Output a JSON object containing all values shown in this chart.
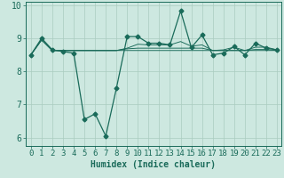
{
  "xlabel": "Humidex (Indice chaleur)",
  "background_color": "#cde8e0",
  "grid_color": "#aaccbf",
  "line_color": "#1a6b5a",
  "xlim_min": -0.5,
  "xlim_max": 23.4,
  "ylim_min": 5.75,
  "ylim_max": 10.1,
  "xticks": [
    0,
    1,
    2,
    3,
    4,
    5,
    6,
    7,
    8,
    9,
    10,
    11,
    12,
    13,
    14,
    15,
    16,
    17,
    18,
    19,
    20,
    21,
    22,
    23
  ],
  "yticks": [
    6,
    7,
    8,
    9,
    10
  ],
  "s1_x": [
    0,
    1,
    2,
    3,
    4,
    5,
    6,
    7,
    8,
    9,
    10,
    11,
    12,
    13,
    14,
    15,
    16,
    17,
    18,
    19,
    20,
    21,
    22,
    23
  ],
  "s1_y": [
    8.5,
    9.0,
    8.65,
    8.6,
    8.55,
    6.55,
    6.72,
    6.05,
    7.5,
    9.05,
    9.05,
    8.85,
    8.85,
    8.8,
    9.82,
    8.72,
    9.1,
    8.5,
    8.55,
    8.75,
    8.5,
    8.85,
    8.7,
    8.65
  ],
  "s2_x": [
    0,
    1,
    2,
    3,
    4,
    5,
    6,
    7,
    8,
    9,
    10,
    11,
    12,
    13,
    14,
    15,
    16,
    17,
    18,
    19,
    20,
    21,
    22,
    23
  ],
  "s2_y": [
    8.5,
    8.95,
    8.63,
    8.63,
    8.63,
    8.63,
    8.63,
    8.63,
    8.63,
    8.63,
    8.63,
    8.63,
    8.63,
    8.63,
    8.63,
    8.63,
    8.63,
    8.63,
    8.63,
    8.63,
    8.63,
    8.63,
    8.63,
    8.63
  ],
  "s3_x": [
    0,
    1,
    2,
    3,
    4,
    5,
    6,
    7,
    8,
    9,
    10,
    11,
    12,
    13,
    14,
    15,
    16,
    17,
    18,
    19,
    20,
    21,
    22,
    23
  ],
  "s3_y": [
    8.5,
    8.95,
    8.63,
    8.63,
    8.63,
    8.63,
    8.63,
    8.63,
    8.63,
    8.68,
    8.7,
    8.7,
    8.7,
    8.7,
    8.7,
    8.7,
    8.7,
    8.63,
    8.63,
    8.63,
    8.63,
    8.66,
    8.66,
    8.63
  ],
  "s4_x": [
    0,
    1,
    2,
    3,
    4,
    5,
    6,
    7,
    8,
    9,
    10,
    11,
    12,
    13,
    14,
    15,
    16,
    17,
    18,
    19,
    20,
    21,
    22,
    23
  ],
  "s4_y": [
    8.5,
    8.95,
    8.63,
    8.63,
    8.63,
    8.63,
    8.63,
    8.63,
    8.63,
    8.7,
    8.82,
    8.8,
    8.8,
    8.8,
    8.9,
    8.76,
    8.8,
    8.63,
    8.65,
    8.73,
    8.63,
    8.73,
    8.73,
    8.65
  ],
  "marker": "D",
  "marker_size": 2.5,
  "line_width": 0.9,
  "font_family": "monospace",
  "xlabel_fontsize": 7,
  "tick_fontsize": 6.5
}
